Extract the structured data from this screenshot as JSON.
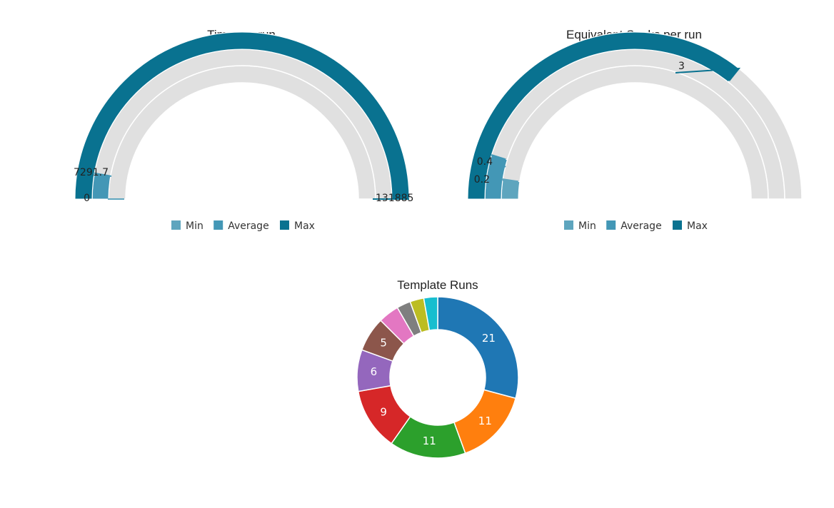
{
  "chart_data": [
    {
      "type": "radial-gauge",
      "title": "Time per run",
      "axis_range": [
        0,
        131885
      ],
      "series": [
        {
          "name": "Min",
          "value": 0,
          "value_label": "0",
          "color": "#5ea5be"
        },
        {
          "name": "Average",
          "value": 7291.7,
          "value_label": "7291.7",
          "color": "#4397b6"
        },
        {
          "name": "Max",
          "value": 131885,
          "value_label": "131885",
          "color": "#097290"
        }
      ],
      "track_color": "#e0e0e0",
      "legend_position": "bottom"
    },
    {
      "type": "radial-gauge",
      "title": "Equivalent Seeks per run",
      "axis_range": [
        0,
        4.2
      ],
      "series": [
        {
          "name": "Min",
          "value": 0.2,
          "value_label": "0.2",
          "color": "#5ea5be"
        },
        {
          "name": "Average",
          "value": 0.4,
          "value_label": "0.4",
          "color": "#4397b6"
        },
        {
          "name": "Max",
          "value": 3,
          "value_label": "3",
          "color": "#097290"
        }
      ],
      "track_color": "#e0e0e0",
      "legend_position": "bottom"
    },
    {
      "type": "pie",
      "title": "Template Runs",
      "donut": true,
      "slices": [
        {
          "value": 21,
          "label": "21",
          "color": "#1f77b4"
        },
        {
          "value": 11,
          "label": "11",
          "color": "#ff7f0e"
        },
        {
          "value": 11,
          "label": "11",
          "color": "#2ca02c"
        },
        {
          "value": 9,
          "label": "9",
          "color": "#d62728"
        },
        {
          "value": 6,
          "label": "6",
          "color": "#9467bd"
        },
        {
          "value": 5,
          "label": "5",
          "color": "#8c564b"
        },
        {
          "value": 3,
          "label": "",
          "color": "#e377c2"
        },
        {
          "value": 2,
          "label": "",
          "color": "#7f7f7f"
        },
        {
          "value": 2,
          "label": "",
          "color": "#bcbd22"
        },
        {
          "value": 2,
          "label": "",
          "color": "#17becf"
        }
      ]
    }
  ]
}
